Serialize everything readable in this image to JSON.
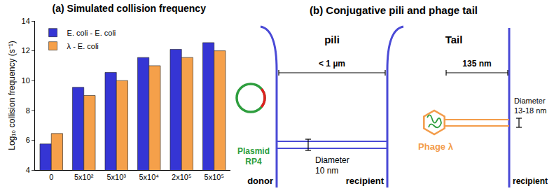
{
  "chart_data": {
    "type": "bar",
    "title": "(a) Simulated collision frequency",
    "y_label": "Log₁₀ collision frequency (s⁻¹)",
    "categories": [
      "0",
      "5x10²",
      "5x10³",
      "5x10⁴",
      "2x10⁵",
      "5x10⁵"
    ],
    "series": [
      {
        "name": "E. coli - E. coli",
        "color": "#3535d4",
        "values": [
          5.75,
          9.55,
          10.55,
          11.55,
          12.1,
          12.55
        ]
      },
      {
        "name": "λ - E. coli",
        "color": "#f5a04a",
        "values": [
          6.45,
          9.0,
          10.0,
          11.0,
          11.55,
          12.0
        ]
      }
    ],
    "ylim": [
      4,
      14
    ],
    "yticks": [
      4,
      6,
      8,
      10,
      12,
      14
    ],
    "grid": false,
    "legend": "top-left"
  },
  "diagram": {
    "title": "(b) Conjugative pili and phage tail",
    "pili": {
      "label": "pili",
      "width_label": "< 1 µm",
      "diameter_label": "Diameter",
      "diameter_value": "10 nm",
      "plasmid_label": "Plasmid",
      "plasmid_name": "RP4",
      "donor_label": "donor",
      "recipient_label": "recipient"
    },
    "tail": {
      "label": "Tail",
      "length_label": "135 nm",
      "diameter_label": "Diameter",
      "diameter_value": "13-18 nm",
      "phage_label": "Phage λ",
      "recipient_label": "recipient"
    }
  }
}
